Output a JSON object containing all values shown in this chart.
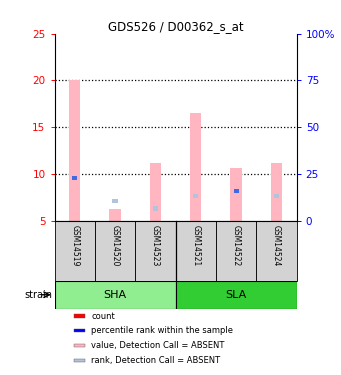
{
  "title": "GDS526 / D00362_s_at",
  "samples": [
    "GSM14519",
    "GSM14520",
    "GSM14523",
    "GSM14521",
    "GSM14522",
    "GSM14524"
  ],
  "ylim_left": [
    5,
    25
  ],
  "ylim_right": [
    0,
    100
  ],
  "yticks_left": [
    5,
    10,
    15,
    20,
    25
  ],
  "yticks_right": [
    0,
    25,
    50,
    75,
    100
  ],
  "ytick_labels_right": [
    "0",
    "25",
    "50",
    "75",
    "100%"
  ],
  "absent_value_tops": [
    20.1,
    6.2,
    11.2,
    16.5,
    10.6,
    11.2
  ],
  "absent_rank_vals": [
    0,
    7.1,
    6.3,
    7.6,
    0,
    7.6
  ],
  "rank_vals": [
    9.6,
    0,
    0,
    0,
    8.2,
    0
  ],
  "absent_value_color": "#FFB6C1",
  "absent_rank_color": "#B0C4DE",
  "rank_color": "#4169E1",
  "count_color": "#FF0000",
  "sha_color": "#90EE90",
  "sla_color": "#32CD32",
  "sample_box_color": "#D3D3D3",
  "left_tick_color": "#FF0000",
  "right_tick_color": "#0000FF",
  "grid_dotted_at": [
    10,
    15,
    20
  ],
  "legend_items": [
    {
      "label": "count",
      "color": "#FF0000"
    },
    {
      "label": "percentile rank within the sample",
      "color": "#0000FF"
    },
    {
      "label": "value, Detection Call = ABSENT",
      "color": "#FFB6C1"
    },
    {
      "label": "rank, Detection Call = ABSENT",
      "color": "#B0C4DE"
    }
  ]
}
